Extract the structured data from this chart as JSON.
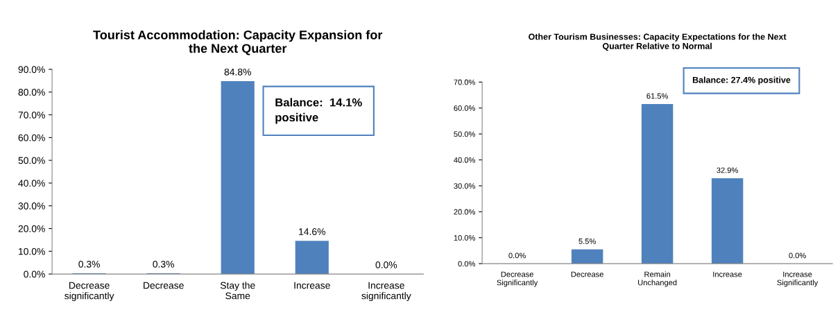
{
  "chart_data": [
    {
      "type": "bar",
      "title": "Tourist Accommodation: Capacity Expansion for\nthe Next Quarter",
      "categories": [
        "Decrease\nsignificantly",
        "Decrease",
        "Stay the\nSame",
        "Increase",
        "Increase\nsignificantly"
      ],
      "values": [
        0.3,
        0.3,
        84.8,
        14.6,
        0.0
      ],
      "value_labels": [
        "0.3%",
        "0.3%",
        "84.8%",
        "14.6%",
        "0.0%"
      ],
      "color": "#4f81bd",
      "ylim": [
        0,
        90
      ],
      "yticks": [
        {
          "value": 0,
          "label": "0.0%"
        },
        {
          "value": 10,
          "label": "10.0%"
        },
        {
          "value": 20,
          "label": "20.0%"
        },
        {
          "value": 30,
          "label": "30.0%"
        },
        {
          "value": 40,
          "label": "40.0%"
        },
        {
          "value": 50,
          "label": "50.0%"
        },
        {
          "value": 60,
          "label": "60.0%"
        },
        {
          "value": 70,
          "label": "70.0%"
        },
        {
          "value": 80,
          "label": "80.0%"
        },
        {
          "value": 90,
          "label": "90.0%"
        }
      ],
      "grid": false,
      "legend": false,
      "annotations": [
        "Balance:  14.1%\npositive"
      ]
    },
    {
      "type": "bar",
      "title": "Other Tourism Businesses: Capacity Expectations for the Next\nQuarter Relative to Normal",
      "categories": [
        "Decrease\nSignificantly",
        "Decrease",
        "Remain\nUnchanged",
        "Increase",
        "Increase\nSignificantly"
      ],
      "values": [
        0.0,
        5.5,
        61.5,
        32.9,
        0.0
      ],
      "value_labels": [
        "0.0%",
        "5.5%",
        "61.5%",
        "32.9%",
        "0.0%"
      ],
      "color": "#4f81bd",
      "ylim": [
        0,
        70
      ],
      "yticks": [
        {
          "value": 0,
          "label": "0.0%"
        },
        {
          "value": 10,
          "label": "10.0%"
        },
        {
          "value": 20,
          "label": "20.0%"
        },
        {
          "value": 30,
          "label": "30.0%"
        },
        {
          "value": 40,
          "label": "40.0%"
        },
        {
          "value": 50,
          "label": "50.0%"
        },
        {
          "value": 60,
          "label": "60.0%"
        },
        {
          "value": 70,
          "label": "70.0%"
        }
      ],
      "grid": false,
      "legend": false,
      "annotations": [
        "Balance: 27.4% positive"
      ]
    }
  ]
}
